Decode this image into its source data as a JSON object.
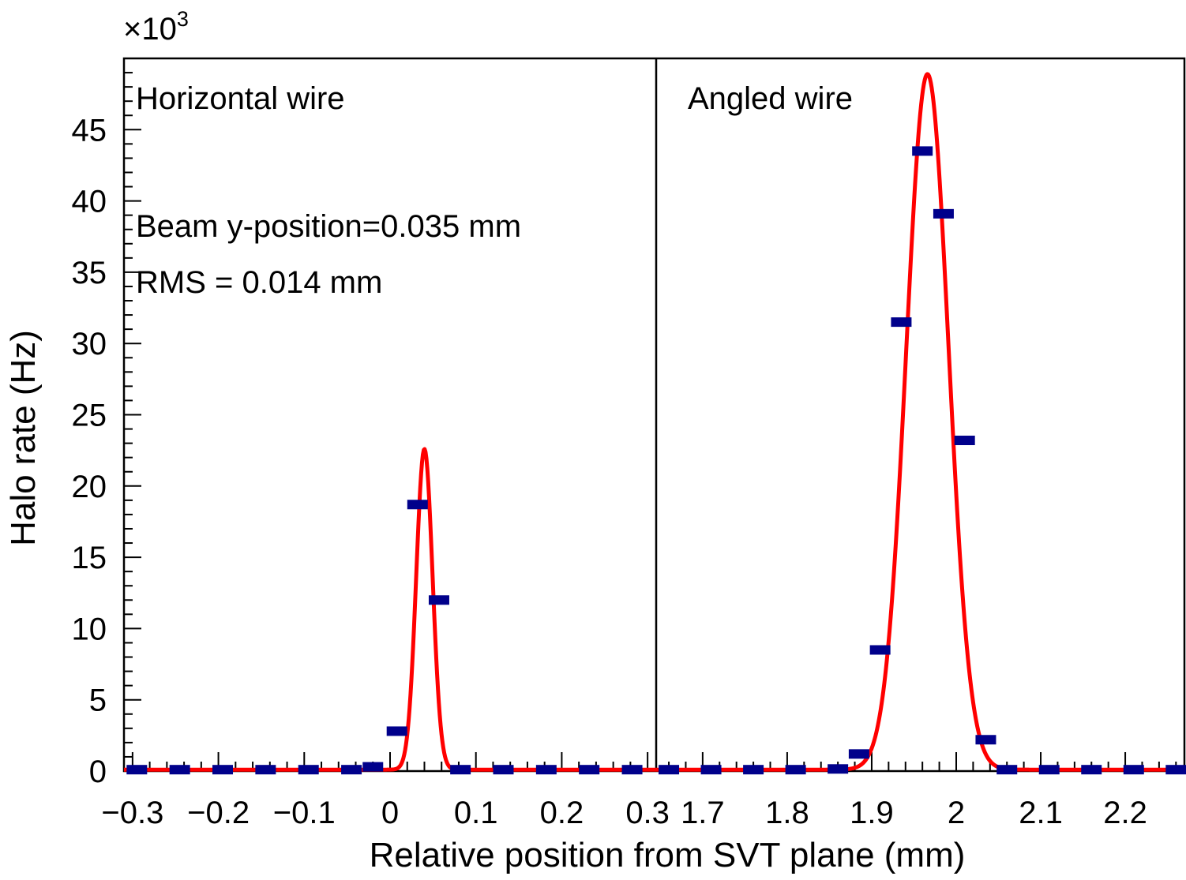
{
  "chart_data": {
    "type": "scatter",
    "ylabel": "Halo rate (Hz)",
    "xlabel": "Relative position from SVT plane (mm)",
    "y_multiplier_label": "×10",
    "y_multiplier_exp": "3",
    "ylim": [
      0,
      50
    ],
    "y_ticks": [
      0,
      5,
      10,
      15,
      20,
      25,
      30,
      35,
      40,
      45
    ],
    "y_tick_labels": [
      "0",
      "5",
      "10",
      "15",
      "20",
      "25",
      "30",
      "35",
      "40",
      "45"
    ],
    "grid": false,
    "colors": {
      "points": "#00008b",
      "fit": "#ff0000",
      "axes": "#000000"
    },
    "panels": [
      {
        "xlim": [
          -0.31,
          0.31
        ],
        "x_ticks": [
          -0.3,
          -0.2,
          -0.1,
          0,
          0.1,
          0.2,
          0.3
        ],
        "x_tick_labels": [
          "−0.3",
          "−0.2",
          "−0.1",
          "0",
          "0.1",
          "0.2",
          "0.3"
        ],
        "annotations": [
          "Horizontal wire",
          "Beam y-position=0.035 mm",
          "RMS = 0.014 mm"
        ],
        "points": [
          {
            "x": -0.295,
            "y": 0.1
          },
          {
            "x": -0.245,
            "y": 0.1
          },
          {
            "x": -0.195,
            "y": 0.1
          },
          {
            "x": -0.145,
            "y": 0.1
          },
          {
            "x": -0.095,
            "y": 0.1
          },
          {
            "x": -0.045,
            "y": 0.1
          },
          {
            "x": -0.02,
            "y": 0.3
          },
          {
            "x": 0.008,
            "y": 2.8
          },
          {
            "x": 0.032,
            "y": 18.7
          },
          {
            "x": 0.057,
            "y": 12.0
          },
          {
            "x": 0.082,
            "y": 0.1
          },
          {
            "x": 0.132,
            "y": 0.1
          },
          {
            "x": 0.182,
            "y": 0.1
          },
          {
            "x": 0.232,
            "y": 0.1
          },
          {
            "x": 0.282,
            "y": 0.1
          }
        ],
        "fit": {
          "mean": 0.04,
          "sigma": 0.0095,
          "amplitude": 22.5,
          "baseline": 0.1
        }
      },
      {
        "xlim": [
          1.645,
          2.27
        ],
        "x_ticks": [
          1.7,
          1.8,
          1.9,
          2.0,
          2.1,
          2.2
        ],
        "x_tick_labels": [
          "1.7",
          "1.8",
          "1.9",
          "2",
          "2.1",
          "2.2"
        ],
        "annotations": [
          "Angled wire"
        ],
        "points": [
          {
            "x": 1.66,
            "y": 0.1
          },
          {
            "x": 1.71,
            "y": 0.1
          },
          {
            "x": 1.76,
            "y": 0.1
          },
          {
            "x": 1.81,
            "y": 0.1
          },
          {
            "x": 1.86,
            "y": 0.15
          },
          {
            "x": 1.885,
            "y": 1.2
          },
          {
            "x": 1.91,
            "y": 8.5
          },
          {
            "x": 1.935,
            "y": 31.5
          },
          {
            "x": 1.96,
            "y": 43.5
          },
          {
            "x": 1.985,
            "y": 39.1
          },
          {
            "x": 2.01,
            "y": 23.2
          },
          {
            "x": 2.035,
            "y": 2.2
          },
          {
            "x": 2.06,
            "y": 0.1
          },
          {
            "x": 2.11,
            "y": 0.1
          },
          {
            "x": 2.16,
            "y": 0.1
          },
          {
            "x": 2.21,
            "y": 0.1
          },
          {
            "x": 2.26,
            "y": 0.1
          }
        ],
        "fit": {
          "mean": 1.966,
          "sigma": 0.025,
          "amplitude": 48.8,
          "baseline": 0.1
        }
      }
    ]
  }
}
